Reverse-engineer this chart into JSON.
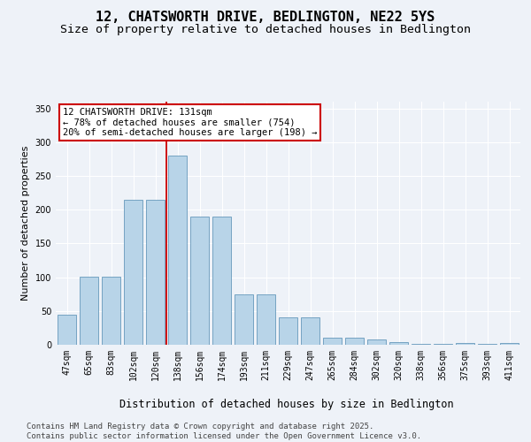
{
  "title": "12, CHATSWORTH DRIVE, BEDLINGTON, NE22 5YS",
  "subtitle": "Size of property relative to detached houses in Bedlington",
  "xlabel": "Distribution of detached houses by size in Bedlington",
  "ylabel": "Number of detached properties",
  "categories": [
    "47sqm",
    "65sqm",
    "83sqm",
    "102sqm",
    "120sqm",
    "138sqm",
    "156sqm",
    "174sqm",
    "193sqm",
    "211sqm",
    "229sqm",
    "247sqm",
    "265sqm",
    "284sqm",
    "302sqm",
    "320sqm",
    "338sqm",
    "356sqm",
    "375sqm",
    "393sqm",
    "411sqm"
  ],
  "values": [
    45,
    101,
    101,
    215,
    215,
    280,
    190,
    190,
    75,
    75,
    40,
    40,
    10,
    10,
    8,
    4,
    1,
    1,
    3,
    1,
    3
  ],
  "bar_color": "#b8d4e8",
  "bar_edge_color": "#6699bb",
  "background_color": "#eef2f8",
  "grid_color": "#ffffff",
  "red_line_x": 4.5,
  "annotation_text": "12 CHATSWORTH DRIVE: 131sqm\n← 78% of detached houses are smaller (754)\n20% of semi-detached houses are larger (198) →",
  "annotation_box_color": "#ffffff",
  "annotation_box_edge_color": "#cc0000",
  "footer_text": "Contains HM Land Registry data © Crown copyright and database right 2025.\nContains public sector information licensed under the Open Government Licence v3.0.",
  "ylim": [
    0,
    360
  ],
  "yticks": [
    0,
    50,
    100,
    150,
    200,
    250,
    300,
    350
  ],
  "title_fontsize": 11,
  "subtitle_fontsize": 9.5,
  "xlabel_fontsize": 8.5,
  "ylabel_fontsize": 8,
  "tick_fontsize": 7,
  "annotation_fontsize": 7.5,
  "footer_fontsize": 6.5
}
